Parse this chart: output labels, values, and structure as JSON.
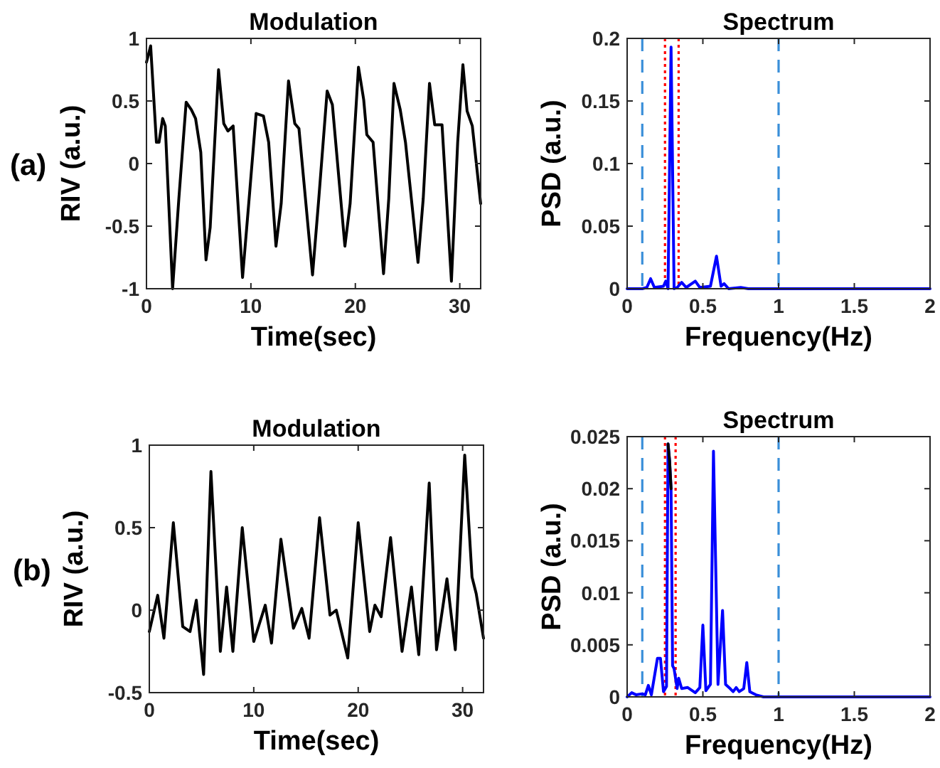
{
  "chart_data": [
    {
      "type": "line",
      "title": "Modulation",
      "xlabel": "Time(sec)",
      "ylabel": "RIV (a.u.)",
      "annotations": [
        "(a)"
      ],
      "xlim": [
        0,
        32
      ],
      "xticks": [
        0,
        10,
        20,
        30
      ],
      "ylim": [
        -1,
        1
      ],
      "yticks": [
        -1,
        -0.5,
        0,
        0.5,
        1
      ],
      "grid": false,
      "series": [
        {
          "color": "#000000",
          "x": [
            0,
            0.4,
            0.95,
            1.2,
            1.55,
            1.8,
            2.5,
            3.1,
            3.8,
            4.3,
            4.7,
            5.2,
            5.7,
            6.1,
            6.9,
            7.4,
            7.8,
            8.3,
            9.2,
            9.9,
            10.5,
            11.2,
            11.7,
            12.4,
            12.9,
            13.6,
            14.2,
            14.6,
            15.9,
            16.5,
            17.3,
            17.8,
            19,
            19.5,
            20.3,
            20.8,
            21.1,
            21.7,
            22.7,
            23.2,
            23.7,
            24.3,
            24.8,
            26,
            26.5,
            27.1,
            27.6,
            28.3,
            29.2,
            29.8,
            30.3,
            30.7,
            31.2,
            32
          ],
          "values": [
            0.81,
            0.94,
            0.17,
            0.17,
            0.36,
            0.3,
            -1,
            -0.28,
            0.49,
            0.43,
            0.36,
            0.09,
            -0.77,
            -0.51,
            0.75,
            0.32,
            0.26,
            0.3,
            -0.91,
            -0.21,
            0.4,
            0.38,
            0.17,
            -0.66,
            -0.32,
            0.66,
            0.32,
            0.28,
            -0.89,
            -0.28,
            0.58,
            0.47,
            -0.66,
            -0.32,
            0.77,
            0.51,
            0.23,
            0.17,
            -0.88,
            -0.28,
            0.64,
            0.43,
            0.17,
            -0.79,
            -0.28,
            0.64,
            0.31,
            0.31,
            -0.94,
            0.17,
            0.79,
            0.42,
            0.3,
            -0.32
          ]
        }
      ]
    },
    {
      "type": "line",
      "title": "Spectrum",
      "xlabel": "Frequency(Hz)",
      "ylabel": "PSD (a.u.)",
      "xlim": [
        0,
        2
      ],
      "xticks": [
        0,
        0.5,
        1,
        1.5,
        2
      ],
      "ylim": [
        0,
        0.2
      ],
      "yticks": [
        0,
        0.05,
        0.1,
        0.15,
        0.2
      ],
      "grid": false,
      "ref_lines": [
        {
          "axis": "x",
          "value": 0.1,
          "color": "#3a8fd9",
          "line_style": "dashed"
        },
        {
          "axis": "x",
          "value": 1,
          "color": "#3a8fd9",
          "line_style": "dashed"
        },
        {
          "axis": "x",
          "value": 0.25,
          "color": "#ff0000",
          "line_style": "dotted"
        },
        {
          "axis": "x",
          "value": 0.34,
          "color": "#ff0000",
          "line_style": "dotted"
        }
      ],
      "series": [
        {
          "color": "#0000ff",
          "x": [
            0,
            0.1,
            0.13,
            0.155,
            0.18,
            0.24,
            0.255,
            0.27,
            0.29,
            0.31,
            0.33,
            0.36,
            0.39,
            0.45,
            0.48,
            0.55,
            0.59,
            0.62,
            0.64,
            0.67,
            0.75,
            0.8,
            2
          ],
          "values": [
            0,
            0,
            0.001,
            0.008,
            0.001,
            0.002,
            0.006,
            0,
            0.193,
            0,
            0.001,
            0.005,
            0.001,
            0.006,
            0.001,
            0.002,
            0.026,
            0.002,
            0.004,
            0,
            0.001,
            0,
            0
          ]
        }
      ]
    },
    {
      "type": "line",
      "title": "Modulation",
      "xlabel": "Time(sec)",
      "ylabel": "RIV (a.u.)",
      "annotations": [
        "(b)"
      ],
      "xlim": [
        0,
        32
      ],
      "xticks": [
        0,
        10,
        20,
        30
      ],
      "ylim": [
        -0.5,
        1
      ],
      "yticks": [
        -0.5,
        0,
        0.5,
        1
      ],
      "grid": false,
      "series": [
        {
          "color": "#000000",
          "x": [
            0,
            0.8,
            1.4,
            2.3,
            3.2,
            3.9,
            4.5,
            5.2,
            5.9,
            6.8,
            7.4,
            8,
            8.9,
            10,
            11.1,
            11.7,
            12.6,
            13.8,
            14.6,
            15.3,
            16.3,
            17.3,
            17.9,
            19,
            20,
            21.1,
            21.6,
            22.2,
            23.1,
            24.2,
            25.1,
            25.8,
            26.8,
            27.5,
            28.5,
            29.3,
            30.2,
            30.9,
            31.3,
            32
          ],
          "values": [
            -0.13,
            0.09,
            -0.17,
            0.53,
            -0.1,
            -0.13,
            0.06,
            -0.39,
            0.84,
            -0.25,
            0.14,
            -0.25,
            0.5,
            -0.19,
            0.03,
            -0.2,
            0.43,
            -0.11,
            0.01,
            -0.17,
            0.56,
            -0.03,
            0,
            -0.29,
            0.53,
            -0.13,
            0.03,
            -0.04,
            0.44,
            -0.25,
            0.14,
            -0.27,
            0.77,
            -0.24,
            0.19,
            -0.24,
            0.94,
            0.2,
            0.1,
            -0.17
          ]
        }
      ]
    },
    {
      "type": "line",
      "title": "Spectrum",
      "xlabel": "Frequency(Hz)",
      "ylabel": "PSD (a.u.)",
      "xlim": [
        0,
        2
      ],
      "xticks": [
        0,
        0.5,
        1,
        1.5,
        2
      ],
      "ylim": [
        0,
        0.025
      ],
      "yticks": [
        0,
        0.005,
        0.01,
        0.015,
        0.02,
        0.025
      ],
      "grid": false,
      "ref_lines": [
        {
          "axis": "x",
          "value": 0.1,
          "color": "#3a8fd9",
          "line_style": "dashed"
        },
        {
          "axis": "x",
          "value": 1,
          "color": "#3a8fd9",
          "line_style": "dashed"
        },
        {
          "axis": "x",
          "value": 0.25,
          "color": "#ff0000",
          "line_style": "dotted"
        },
        {
          "axis": "x",
          "value": 0.32,
          "color": "#ff0000",
          "line_style": "dotted"
        }
      ],
      "series": [
        {
          "color": "#0000ff",
          "x": [
            0,
            0.03,
            0.06,
            0.1,
            0.12,
            0.14,
            0.16,
            0.2,
            0.22,
            0.24,
            0.26,
            0.27,
            0.28,
            0.29,
            0.3,
            0.31,
            0.33,
            0.34,
            0.36,
            0.4,
            0.45,
            0.48,
            0.5,
            0.52,
            0.55,
            0.57,
            0.6,
            0.63,
            0.65,
            0.68,
            0.7,
            0.72,
            0.74,
            0.77,
            0.79,
            0.81,
            0.85,
            0.9,
            2
          ],
          "values": [
            0,
            0.0004,
            0.0002,
            0.0003,
            0.0002,
            0.0011,
            0.0002,
            0.0037,
            0.0037,
            0.0005,
            0.001,
            0.0243,
            0.0227,
            0.02,
            0.003,
            0.0027,
            0.0008,
            0.0018,
            0.0008,
            0.0009,
            0.0004,
            0.0009,
            0.0069,
            0.0006,
            0.0012,
            0.0236,
            0.0012,
            0.0083,
            0.0012,
            0.0008,
            0.0005,
            0.0009,
            0.0005,
            0.0008,
            0.0033,
            0.0005,
            0.0002,
            0,
            0
          ]
        },
        {
          "color": "#000000",
          "x": [
            0.27,
            0.28,
            0.29
          ],
          "values": [
            0.0243,
            0.0227,
            0.02
          ]
        }
      ]
    }
  ]
}
